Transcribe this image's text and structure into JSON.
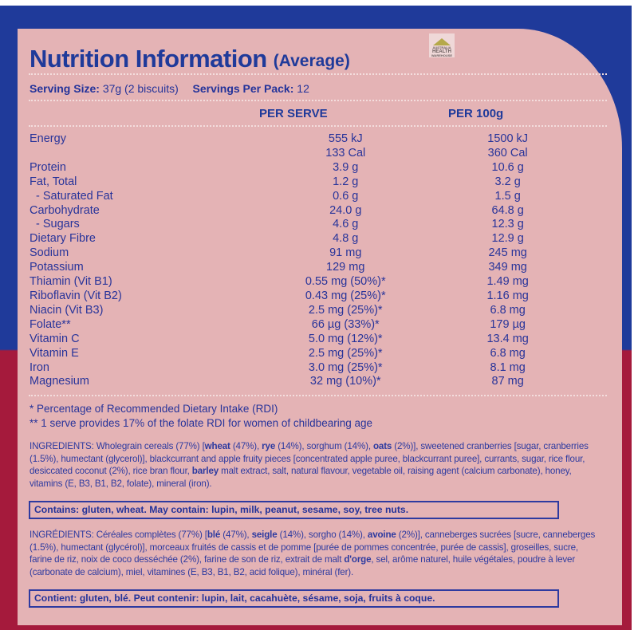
{
  "header": {
    "title": "Nutrition Information",
    "title_suffix": "(Average)",
    "logo": {
      "icon": "roof-logo-icon",
      "line1": "AUSTRALIA",
      "line2": "HEALTH",
      "line3": "WAREHOUSE"
    }
  },
  "serving": {
    "size_label": "Serving Size:",
    "size_value": "37g (2 biscuits)",
    "per_pack_label": "Servings Per Pack:",
    "per_pack_value": "12"
  },
  "columns": {
    "per_serve": "PER SERVE",
    "per_100g": "PER 100g"
  },
  "nutrients": [
    {
      "name": "Energy",
      "per_serve": "555 kJ",
      "per_100g": "1500 kJ"
    },
    {
      "name": "",
      "per_serve": "133 Cal",
      "per_100g": "360 Cal"
    },
    {
      "name": "Protein",
      "per_serve": "3.9 g",
      "per_100g": "10.6 g"
    },
    {
      "name": "Fat, Total",
      "per_serve": "1.2 g",
      "per_100g": "3.2 g"
    },
    {
      "name": "- Saturated Fat",
      "per_serve": "0.6 g",
      "per_100g": "1.5 g"
    },
    {
      "name": "Carbohydrate",
      "per_serve": "24.0 g",
      "per_100g": "64.8 g"
    },
    {
      "name": "- Sugars",
      "per_serve": "4.6 g",
      "per_100g": "12.3 g"
    },
    {
      "name": "Dietary Fibre",
      "per_serve": "4.8 g",
      "per_100g": "12.9 g"
    },
    {
      "name": "Sodium",
      "per_serve": "91 mg",
      "per_100g": "245 mg"
    },
    {
      "name": "Potassium",
      "per_serve": "129 mg",
      "per_100g": "349 mg"
    },
    {
      "name": "Thiamin (Vit B1)",
      "per_serve": "0.55 mg (50%)*",
      "per_100g": "1.49 mg"
    },
    {
      "name": "Riboflavin (Vit B2)",
      "per_serve": "0.43 mg (25%)*",
      "per_100g": "1.16 mg"
    },
    {
      "name": "Niacin (Vit B3)",
      "per_serve": "2.5 mg (25%)*",
      "per_100g": "6.8 mg"
    },
    {
      "name": "Folate**",
      "per_serve": "66 µg (33%)*",
      "per_100g": "179 µg"
    },
    {
      "name": "Vitamin C",
      "per_serve": "5.0 mg (12%)*",
      "per_100g": "13.4 mg"
    },
    {
      "name": "Vitamin E",
      "per_serve": "2.5 mg (25%)*",
      "per_100g": "6.8 mg"
    },
    {
      "name": "Iron",
      "per_serve": "3.0 mg (25%)*",
      "per_100g": "8.1 mg"
    },
    {
      "name": "Magnesium",
      "per_serve": "32 mg (10%)*",
      "per_100g": "87 mg"
    }
  ],
  "footnotes": {
    "rdi": "* Percentage of Recommended Dietary Intake (RDI)",
    "folate": "** 1 serve provides 17% of the folate RDI for women of childbearing age"
  },
  "ingredients_en": {
    "segments": [
      {
        "t": "INGREDIENTS: Wholegrain cereals (77%) [",
        "b": false
      },
      {
        "t": "wheat",
        "b": true
      },
      {
        "t": " (47%), ",
        "b": false
      },
      {
        "t": "rye",
        "b": true
      },
      {
        "t": " (14%), sorghum (14%), ",
        "b": false
      },
      {
        "t": "oats",
        "b": true
      },
      {
        "t": " (2%)], sweetened cranberries [sugar, cranberries (1.5%), humectant (glycerol)], blackcurrant and apple fruity pieces [concentrated apple puree, blackcurrant puree], currants, sugar, rice flour, desiccated coconut (2%), rice bran flour, ",
        "b": false
      },
      {
        "t": "barley",
        "b": true
      },
      {
        "t": " malt extract, salt, natural flavour, vegetable oil, raising agent (calcium carbonate), honey, vitamins (E, B3, B1, B2, folate), mineral (iron).",
        "b": false
      }
    ],
    "allergens": "Contains: gluten, wheat.  May contain: lupin, milk, peanut, sesame, soy, tree nuts."
  },
  "ingredients_fr": {
    "segments": [
      {
        "t": "INGRÉDIENTS: Céréales complètes (77%) [",
        "b": false
      },
      {
        "t": "blé",
        "b": true
      },
      {
        "t": " (47%), ",
        "b": false
      },
      {
        "t": "seigle",
        "b": true
      },
      {
        "t": " (14%), sorgho (14%), ",
        "b": false
      },
      {
        "t": "avoine",
        "b": true
      },
      {
        "t": " (2%)], canneberges sucrées [sucre, canneberges (1.5%), humectant (glycérol)], morceaux fruités de cassis et de pomme [purée de pommes concentrée, purée de cassis], groseilles, sucre, farine de riz, noix de coco desséchée (2%), farine de son de riz, extrait de malt ",
        "b": false
      },
      {
        "t": "d'orge",
        "b": true
      },
      {
        "t": ", sel, arôme naturel, huile végétales, poudre à lever (carbonate de calcium), miel, vitamines (E, B3, B1,  B2, acid folique), minéral (fer).",
        "b": false
      }
    ],
    "allergens": "Contient: gluten, blé. Peut contenir: lupin, lait, cacahuète, sésame, soja, fruits à coque."
  },
  "colors": {
    "blue_band": "#1f3a9a",
    "crimson_band": "#a51a3c",
    "panel_pink": "#e4b3b5",
    "text_blue": "#24339a"
  }
}
